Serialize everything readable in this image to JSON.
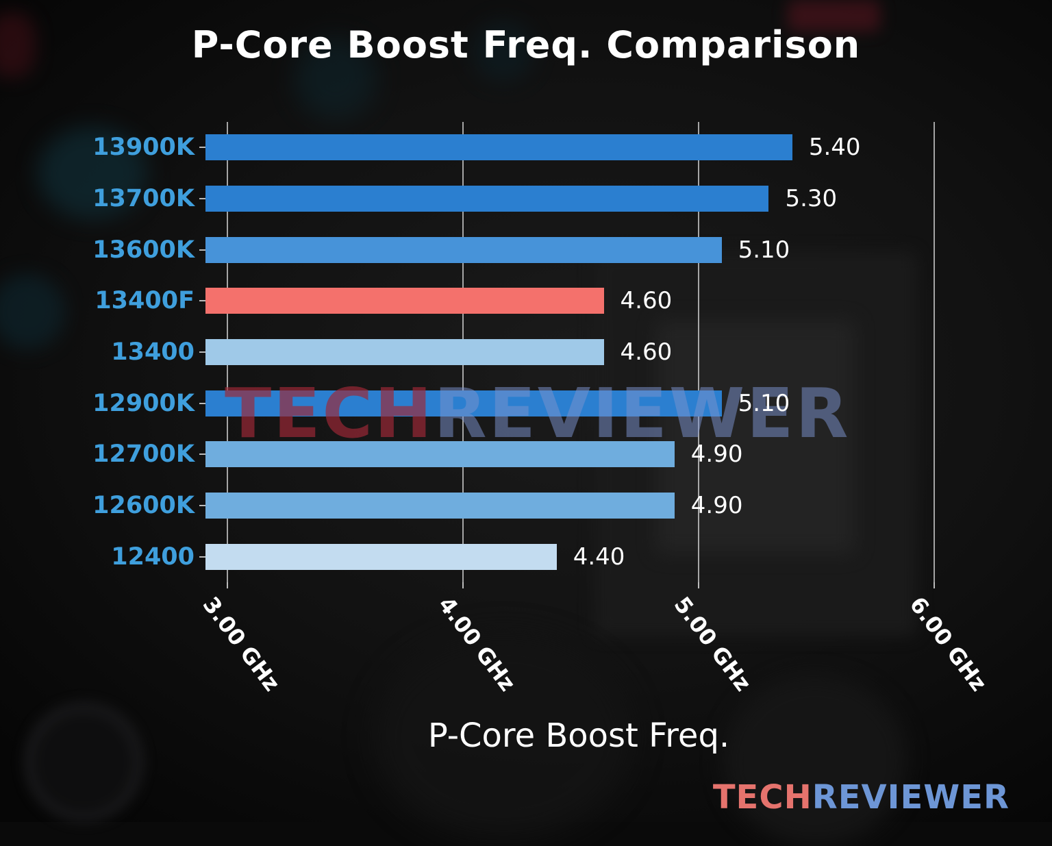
{
  "title": "P-Core Boost Freq. Comparison",
  "watermark": {
    "tech": "TECH",
    "reviewer": "REVIEWER"
  },
  "logo": {
    "tech": "TECH",
    "reviewer": "REVIEWER"
  },
  "chart_data": {
    "type": "bar",
    "orientation": "horizontal",
    "title": "P-Core Boost Freq. Comparison",
    "xlabel": "P-Core Boost Freq.",
    "ylabel": "",
    "categories": [
      "13900K",
      "13700K",
      "13600K",
      "13400F",
      "13400",
      "12900K",
      "12700K",
      "12600K",
      "12400"
    ],
    "values": [
      5.4,
      5.3,
      5.1,
      4.6,
      4.6,
      5.1,
      4.9,
      4.9,
      4.4
    ],
    "value_labels": [
      "5.40",
      "5.30",
      "5.10",
      "4.60",
      "4.60",
      "5.10",
      "4.90",
      "4.90",
      "4.40"
    ],
    "bar_colors": [
      "#2b7fd0",
      "#2b7fd0",
      "#4793d9",
      "#f4716c",
      "#9fc9e8",
      "#2b7fd0",
      "#6fadde",
      "#6fadde",
      "#c3dcf0"
    ],
    "highlight_category": "13400F",
    "highlight_color": "#f4716c",
    "category_label_color": "#3f9fdd",
    "x_ticks": [
      {
        "value": 3,
        "label": "3.00 GHz"
      },
      {
        "value": 4,
        "label": "4.00 GHz"
      },
      {
        "value": 5,
        "label": "5.00 GHz"
      },
      {
        "value": 6,
        "label": "6.00 GHz"
      }
    ],
    "xlim": [
      2.91,
      6.31
    ],
    "grid": true,
    "legend": false
  }
}
